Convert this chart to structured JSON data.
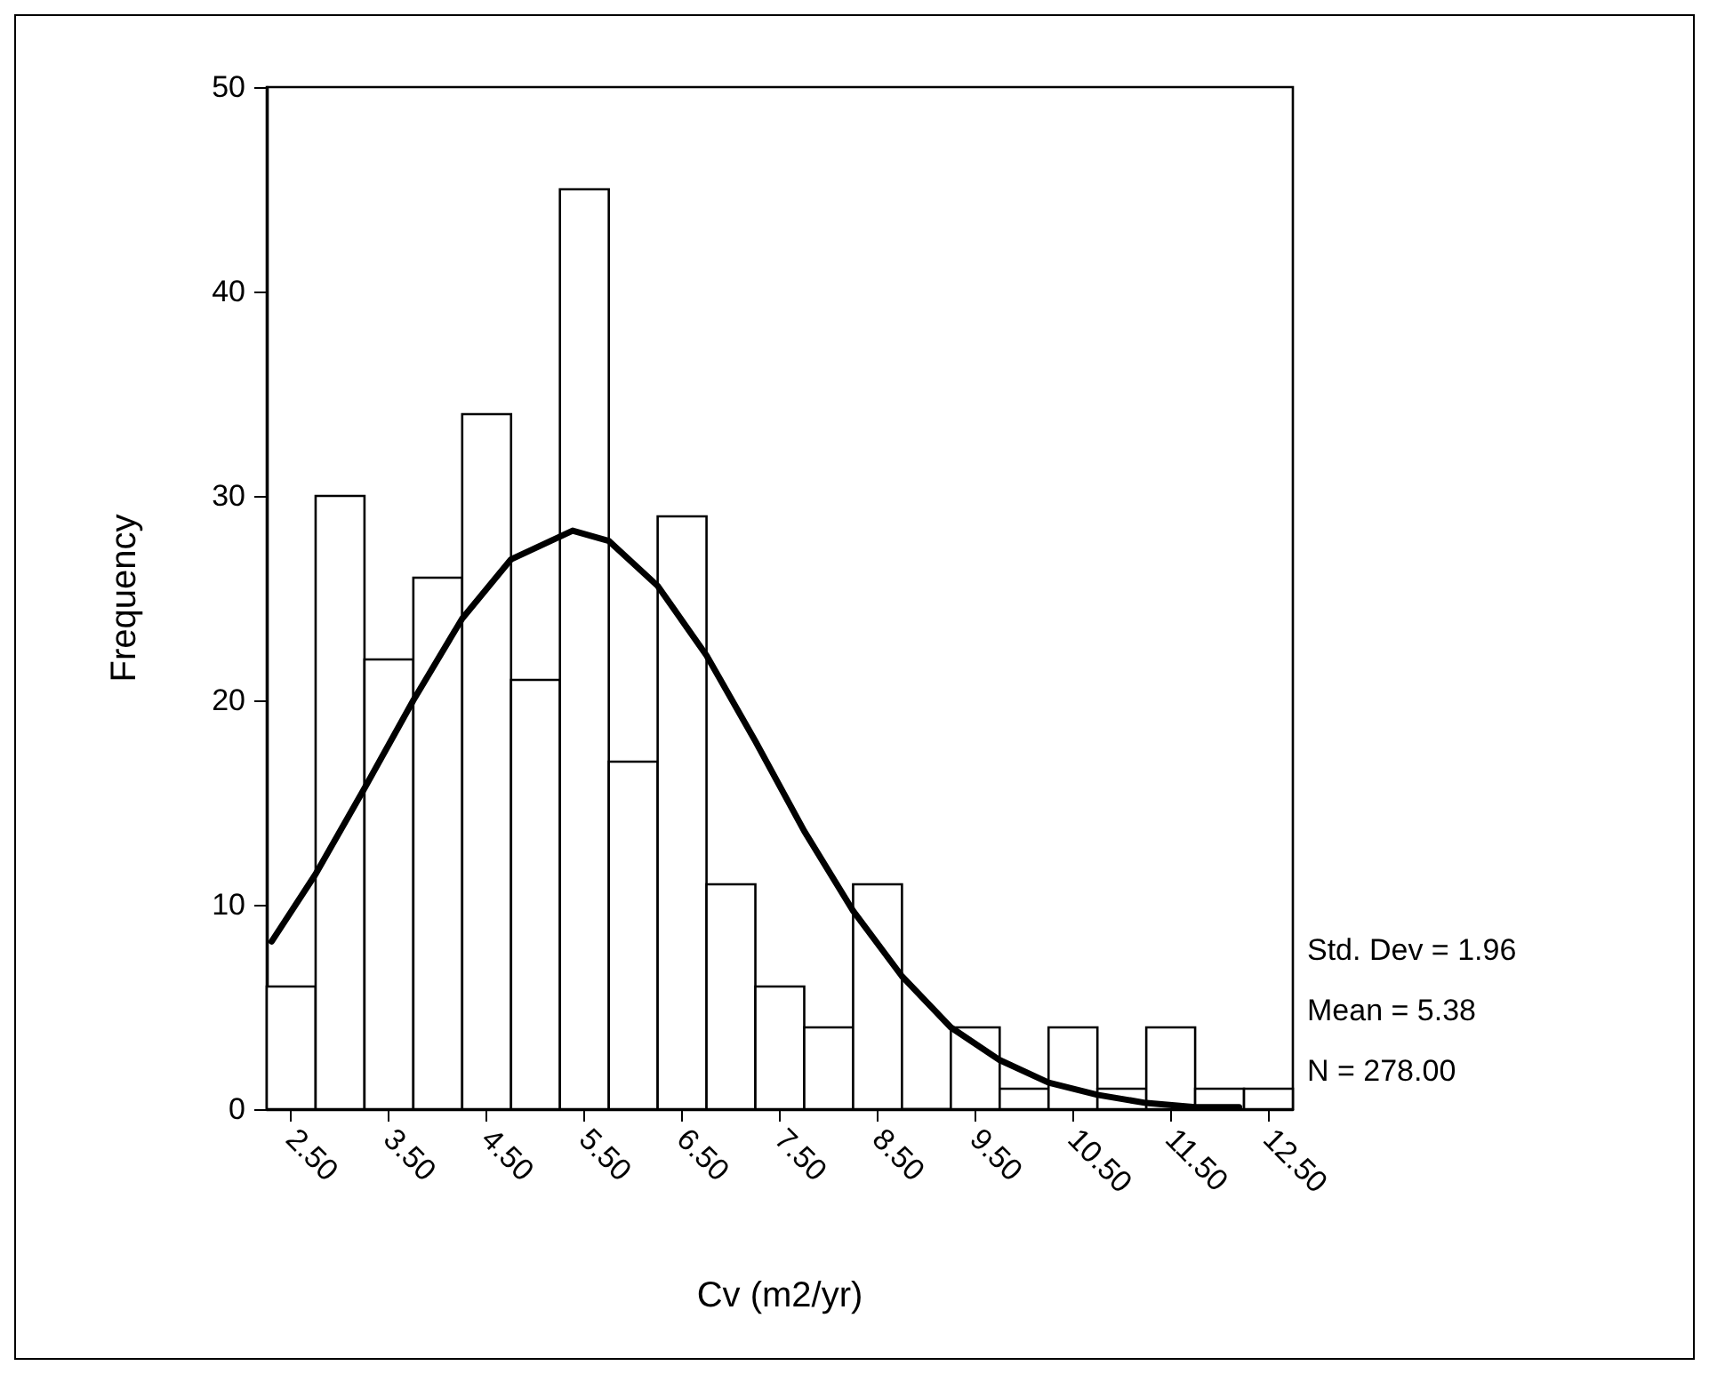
{
  "chart_data": {
    "type": "histogram",
    "xlabel": "Cv (m2/yr)",
    "ylabel": "Frequency",
    "bins": [
      2.25,
      2.75,
      3.25,
      3.75,
      4.25,
      4.75,
      5.25,
      5.75,
      6.25,
      6.75,
      7.25,
      7.75,
      8.25,
      8.75,
      9.25,
      9.75,
      10.25,
      10.75,
      11.25,
      11.75,
      12.25,
      12.75
    ],
    "series": [
      {
        "color": "#ffffff",
        "values": [
          6,
          30,
          22,
          26,
          34,
          21,
          45,
          17,
          29,
          11,
          6,
          4,
          11,
          0,
          4,
          1,
          4,
          1,
          4,
          1,
          1
        ]
      },
      {
        "type": "line",
        "color": "#000000",
        "x": [
          2.3,
          2.75,
          3.25,
          3.75,
          4.25,
          4.75,
          5.38,
          5.75,
          6.25,
          6.75,
          7.25,
          7.75,
          8.25,
          8.75,
          9.25,
          9.75,
          10.25,
          10.75,
          11.25,
          11.75,
          12.2
        ],
        "values": [
          8.2,
          11.5,
          15.7,
          20.0,
          24.0,
          26.9,
          28.3,
          27.8,
          25.6,
          22.2,
          18.0,
          13.6,
          9.7,
          6.5,
          4.0,
          2.4,
          1.3,
          0.7,
          0.3,
          0.1,
          0.1
        ]
      }
    ],
    "xlim": [
      2.25,
      12.75
    ],
    "xticks": [
      {
        "value": 2.5,
        "label": "2.50"
      },
      {
        "value": 3.5,
        "label": "3.50"
      },
      {
        "value": 4.5,
        "label": "4.50"
      },
      {
        "value": 5.5,
        "label": "5.50"
      },
      {
        "value": 6.5,
        "label": "6.50"
      },
      {
        "value": 7.5,
        "label": "7.50"
      },
      {
        "value": 8.5,
        "label": "8.50"
      },
      {
        "value": 9.5,
        "label": "9.50"
      },
      {
        "value": 10.5,
        "label": "10.50"
      },
      {
        "value": 11.5,
        "label": "11.50"
      },
      {
        "value": 12.5,
        "label": "12.50"
      }
    ],
    "ylim": [
      0,
      50
    ],
    "yticks": [
      0,
      10,
      20,
      30,
      40,
      50
    ],
    "grid": false,
    "marker": "none",
    "line_style": "solid",
    "annotations": [
      "Std. Dev = 1.96",
      "Mean = 5.38",
      "N = 278.00"
    ]
  }
}
